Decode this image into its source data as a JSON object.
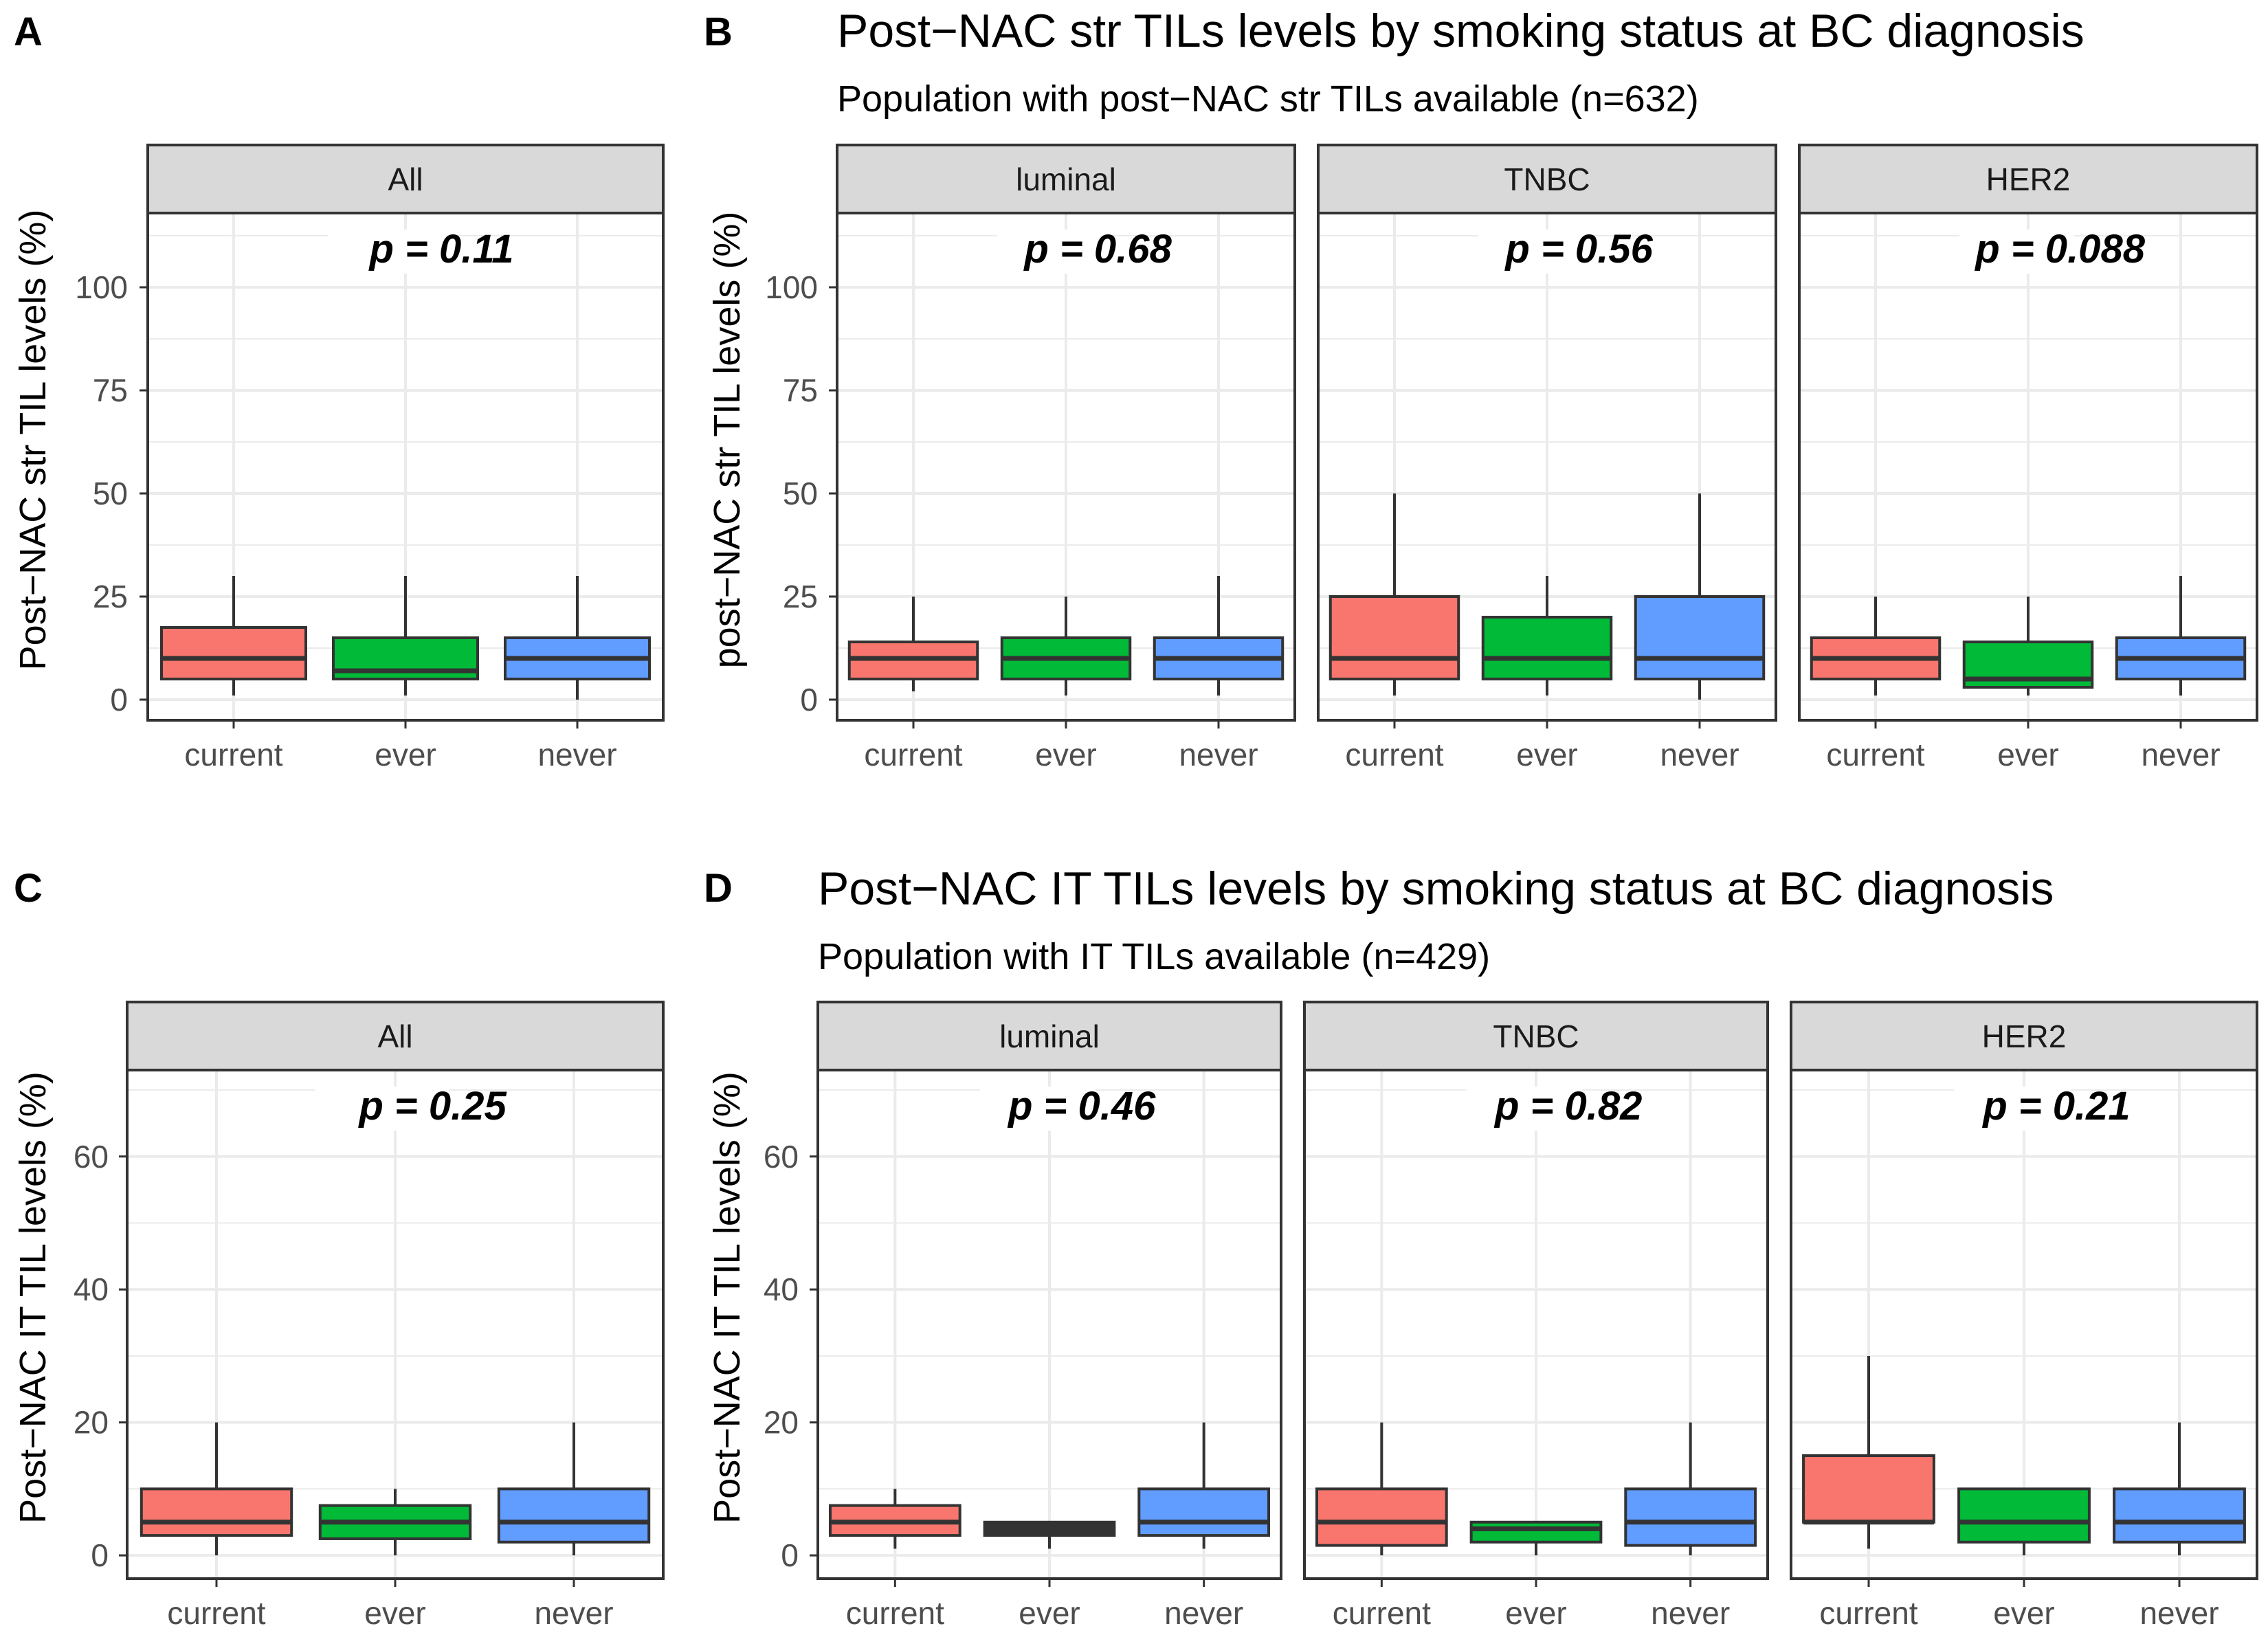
{
  "colors": {
    "current": "#F8766D",
    "ever": "#00BA38",
    "never": "#619CFF",
    "ever_dark": "#333333"
  },
  "panel_letters": {
    "A": "A",
    "B": "B",
    "C": "C",
    "D": "D"
  },
  "titles": {
    "top": "Post−NAC str TILs levels by smoking status at BC diagnosis",
    "top_sub": "Population with post−NAC str TILs available (n=632)",
    "bottom": "Post−NAC IT TILs levels by smoking status at BC diagnosis",
    "bottom_sub": "Population with IT TILs available (n=429)"
  },
  "chart_data": [
    {
      "type": "boxplot",
      "panel": "A",
      "ylabel": "Post−NAC str TIL levels (%)",
      "ylim": [
        -5,
        118
      ],
      "yticks": [
        0,
        25,
        50,
        75,
        100
      ],
      "categories": [
        "current",
        "ever",
        "never"
      ],
      "facets": [
        {
          "strip": "All",
          "p_label": "p = 0.11",
          "boxes": [
            {
              "group": "current",
              "min": 1,
              "q1": 5,
              "median": 10,
              "q3": 17.5,
              "max": 30
            },
            {
              "group": "ever",
              "min": 1,
              "q1": 5,
              "median": 7,
              "q3": 15,
              "max": 30
            },
            {
              "group": "never",
              "min": 0,
              "q1": 5,
              "median": 10,
              "q3": 15,
              "max": 30
            }
          ]
        }
      ]
    },
    {
      "type": "boxplot",
      "panel": "B",
      "ylabel": "post−NAC str TIL levels (%)",
      "ylim": [
        -5,
        118
      ],
      "yticks": [
        0,
        25,
        50,
        75,
        100
      ],
      "categories": [
        "current",
        "ever",
        "never"
      ],
      "facets": [
        {
          "strip": "luminal",
          "p_label": "p = 0.68",
          "boxes": [
            {
              "group": "current",
              "min": 2,
              "q1": 5,
              "median": 10,
              "q3": 14,
              "max": 25
            },
            {
              "group": "ever",
              "min": 1,
              "q1": 5,
              "median": 10,
              "q3": 15,
              "max": 25
            },
            {
              "group": "never",
              "min": 1,
              "q1": 5,
              "median": 10,
              "q3": 15,
              "max": 30
            }
          ]
        },
        {
          "strip": "TNBC",
          "p_label": "p = 0.56",
          "boxes": [
            {
              "group": "current",
              "min": 1,
              "q1": 5,
              "median": 10,
              "q3": 25,
              "max": 50
            },
            {
              "group": "ever",
              "min": 1,
              "q1": 5,
              "median": 10,
              "q3": 20,
              "max": 30
            },
            {
              "group": "never",
              "min": 0,
              "q1": 5,
              "median": 10,
              "q3": 25,
              "max": 50
            }
          ]
        },
        {
          "strip": "HER2",
          "p_label": "p = 0.088",
          "boxes": [
            {
              "group": "current",
              "min": 1,
              "q1": 5,
              "median": 10,
              "q3": 15,
              "max": 25
            },
            {
              "group": "ever",
              "min": 1,
              "q1": 3,
              "median": 5,
              "q3": 14,
              "max": 25
            },
            {
              "group": "never",
              "min": 1,
              "q1": 5,
              "median": 10,
              "q3": 15,
              "max": 30
            }
          ]
        }
      ]
    },
    {
      "type": "boxplot",
      "panel": "C",
      "ylabel": "Post−NAC IT TIL levels (%)",
      "ylim": [
        -3.5,
        73
      ],
      "yticks": [
        0,
        20,
        40,
        60
      ],
      "categories": [
        "current",
        "ever",
        "never"
      ],
      "facets": [
        {
          "strip": "All",
          "p_label": "p = 0.25",
          "boxes": [
            {
              "group": "current",
              "min": 0,
              "q1": 3,
              "median": 5,
              "q3": 10,
              "max": 20
            },
            {
              "group": "ever",
              "min": 0,
              "q1": 2.5,
              "median": 5,
              "q3": 7.5,
              "max": 10
            },
            {
              "group": "never",
              "min": 0,
              "q1": 2,
              "median": 5,
              "q3": 10,
              "max": 20
            }
          ]
        }
      ]
    },
    {
      "type": "boxplot",
      "panel": "D",
      "ylabel": "Post−NAC IT TIL levels (%)",
      "ylim": [
        -3.5,
        73
      ],
      "yticks": [
        0,
        20,
        40,
        60
      ],
      "categories": [
        "current",
        "ever",
        "never"
      ],
      "facets": [
        {
          "strip": "luminal",
          "p_label": "p = 0.46",
          "boxes": [
            {
              "group": "current",
              "min": 1,
              "q1": 3,
              "median": 5,
              "q3": 7.5,
              "max": 10
            },
            {
              "group": "ever",
              "min": 1,
              "q1": 3,
              "median": 4,
              "q3": 5,
              "max": 5
            },
            {
              "group": "never",
              "min": 1,
              "q1": 3,
              "median": 5,
              "q3": 10,
              "max": 20
            }
          ]
        },
        {
          "strip": "TNBC",
          "p_label": "p = 0.82",
          "boxes": [
            {
              "group": "current",
              "min": 0,
              "q1": 1.5,
              "median": 5,
              "q3": 10,
              "max": 20
            },
            {
              "group": "ever",
              "min": 0,
              "q1": 2,
              "median": 4,
              "q3": 5,
              "max": 5
            },
            {
              "group": "never",
              "min": 0,
              "q1": 1.5,
              "median": 5,
              "q3": 10,
              "max": 20
            }
          ]
        },
        {
          "strip": "HER2",
          "p_label": "p = 0.21",
          "boxes": [
            {
              "group": "current",
              "min": 1,
              "q1": 5,
              "median": 5,
              "q3": 15,
              "max": 30
            },
            {
              "group": "ever",
              "min": 0,
              "q1": 2,
              "median": 5,
              "q3": 10,
              "max": 10
            },
            {
              "group": "never",
              "min": 0,
              "q1": 2,
              "median": 5,
              "q3": 10,
              "max": 20
            }
          ]
        }
      ]
    }
  ]
}
